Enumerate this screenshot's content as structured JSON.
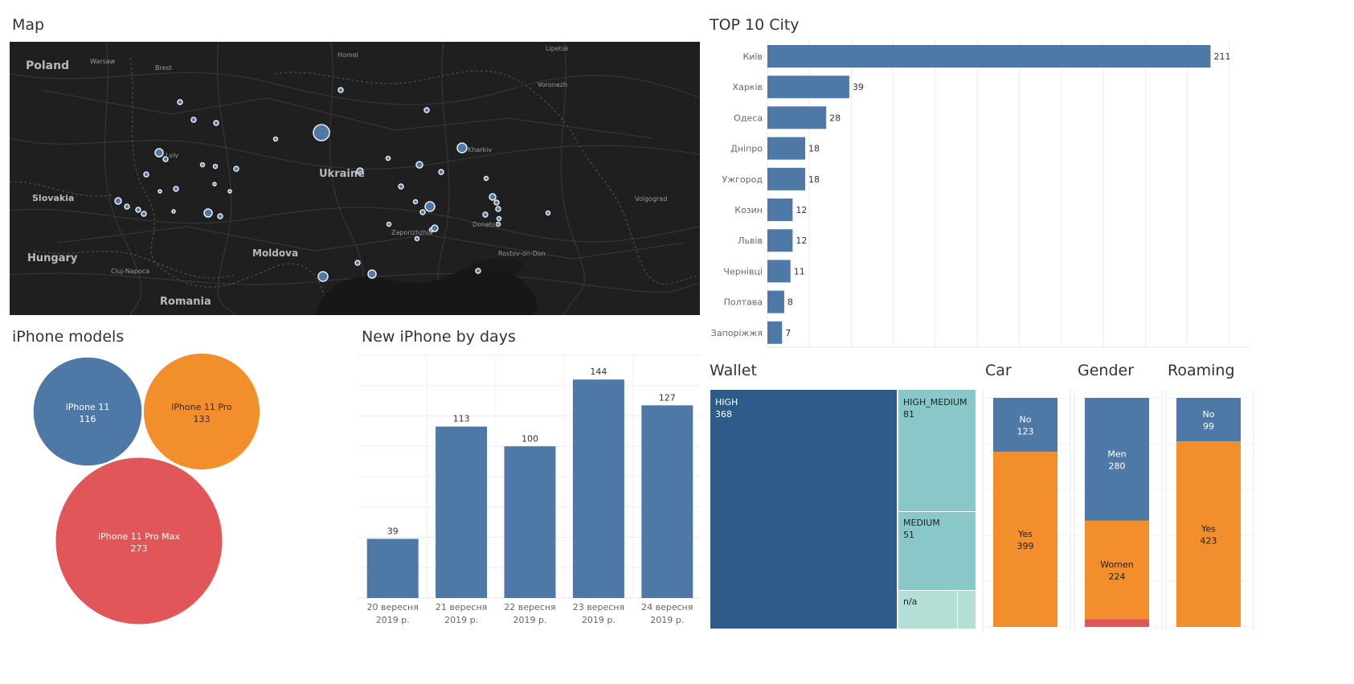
{
  "titles": {
    "map": "Map",
    "top10": "TOP 10 City",
    "models": "iPhone models",
    "days": "New iPhone by days",
    "wallet": "Wallet",
    "car": "Car",
    "gender": "Gender",
    "roaming": "Roaming"
  },
  "colors": {
    "blue": "#4e79a7",
    "orange": "#f28e2b",
    "red": "#e15759",
    "wallet_dark": "#2e5b8a",
    "wallet_teal": "#8ac7c9",
    "wallet_light": "#b4dfd6"
  },
  "map": {
    "labels": {
      "poland": "Poland",
      "warsaw": "Warsaw",
      "brest": "Brest",
      "homel": "Homel",
      "lipetsk": "Lipetsk",
      "voronezh": "Voronezh",
      "ukraine": "Ukraine",
      "kharkiv": "Kharkiv",
      "slovakia": "Slovakia",
      "hungary": "Hungary",
      "moldova": "Moldova",
      "romania": "Romania",
      "cluj": "Cluj-Napoca",
      "zaporizhzhia": "Zaporizhzhia",
      "donetsk": "Donetsk",
      "volgograd": "Volgograd",
      "rostov": "Rostov-on-Don",
      "lviv": "Lviv"
    }
  },
  "chart_data": [
    {
      "type": "bar",
      "orientation": "horizontal",
      "title": "TOP 10 City",
      "categories": [
        "Київ",
        "Харків",
        "Одеса",
        "Дніпро",
        "Ужгород",
        "Козин",
        "Львів",
        "Чернівці",
        "Полтава",
        "Запоріжжя"
      ],
      "values": [
        211,
        39,
        28,
        18,
        18,
        12,
        12,
        11,
        8,
        7
      ],
      "xlim": [
        0,
        220
      ],
      "grid": true
    },
    {
      "type": "bubble",
      "title": "iPhone models",
      "categories": [
        "iPhone 11",
        "iPhone 11 Pro",
        "iPhone 11 Pro Max"
      ],
      "values": [
        116,
        133,
        273
      ],
      "colors": [
        "#4e79a7",
        "#f28e2b",
        "#e15759"
      ]
    },
    {
      "type": "bar",
      "title": "New iPhone by days",
      "categories": [
        "20 вересня 2019 р.",
        "21 вересня 2019 р.",
        "22 вересня 2019 р.",
        "23 вересня 2019 р.",
        "24 вересня 2019 р."
      ],
      "values": [
        39,
        113,
        100,
        144,
        127
      ],
      "ylim": [
        0,
        160
      ],
      "grid": true
    },
    {
      "type": "treemap",
      "title": "Wallet",
      "categories": [
        "HIGH",
        "HIGH_MEDIUM",
        "MEDIUM",
        "n/a"
      ],
      "values": [
        368,
        81,
        51,
        null
      ]
    },
    {
      "type": "stacked_bar",
      "title": "Car",
      "categories": [
        "No",
        "Yes"
      ],
      "values": [
        123,
        399
      ]
    },
    {
      "type": "stacked_bar",
      "title": "Gender",
      "categories": [
        "Men",
        "Women",
        ""
      ],
      "values": [
        280,
        224,
        18
      ]
    },
    {
      "type": "stacked_bar",
      "title": "Roaming",
      "categories": [
        "No",
        "Yes"
      ],
      "values": [
        99,
        423
      ]
    }
  ]
}
